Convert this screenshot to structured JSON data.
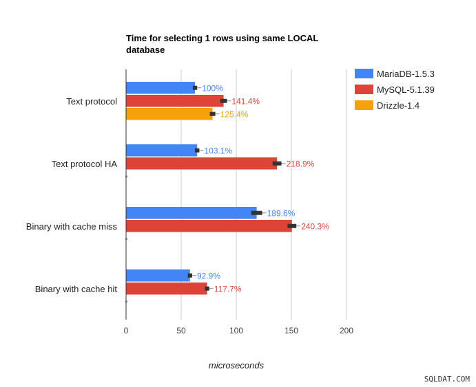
{
  "chart_data": {
    "type": "bar",
    "orientation": "horizontal",
    "title_lines": [
      "Time for selecting 1 rows using same LOCAL",
      "database"
    ],
    "xlabel": "microseconds",
    "ylabel": "",
    "xlim": [
      0,
      200
    ],
    "xticks": [
      "0",
      "50",
      "100",
      "150",
      "200"
    ],
    "grid": true,
    "legend": "top-right",
    "categories": [
      "Text protocol",
      "Text protocol HA",
      "Binary with cache miss",
      "Binary with cache hit"
    ],
    "series": [
      {
        "name": "MariaDB-1.5.3",
        "color": "#4285f4",
        "values": [
          62.5,
          64.5,
          118.5,
          58.0
        ],
        "errors": [
          2.0,
          2.0,
          5.0,
          2.0
        ],
        "labels": [
          "100%",
          "103.1%",
          "189.6%",
          "92.9%"
        ]
      },
      {
        "name": "MySQL-5.1.39",
        "color": "#db4437",
        "values": [
          88.5,
          137.0,
          150.5,
          73.5
        ],
        "errors": [
          3.0,
          4.0,
          4.0,
          2.0
        ],
        "labels": [
          "141.4%",
          "218.9%",
          "240.3%",
          "117.7%"
        ]
      },
      {
        "name": "Drizzle-1.4",
        "color": "#f4a10b",
        "values": [
          78.5,
          0,
          0,
          0
        ],
        "errors": [
          2.5,
          0,
          0,
          0
        ],
        "labels": [
          "125.4%",
          "",
          "",
          ""
        ]
      }
    ]
  },
  "watermark": "SQLDAT.COM"
}
